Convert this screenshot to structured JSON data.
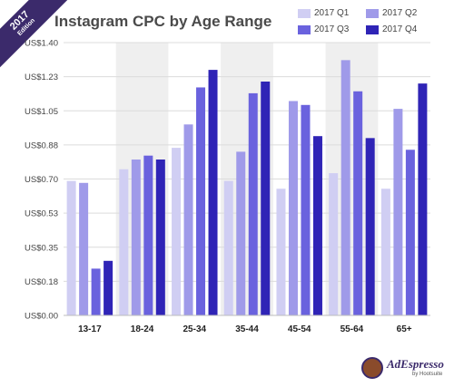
{
  "badge": {
    "year": "2017",
    "subtitle": "Edition"
  },
  "logo": {
    "name": "AdEspresso",
    "by": "by Hootsuite"
  },
  "chart_data": {
    "type": "bar",
    "title": "Instagram CPC by Age Range",
    "categories": [
      "13-17",
      "18-24",
      "25-34",
      "35-44",
      "45-54",
      "55-64",
      "65+"
    ],
    "series": [
      {
        "name": "2017 Q1",
        "color": "#d0cef3",
        "values": [
          0.69,
          0.75,
          0.86,
          0.69,
          0.65,
          0.73,
          0.65
        ]
      },
      {
        "name": "2017 Q2",
        "color": "#9f9ae9",
        "values": [
          0.68,
          0.8,
          0.98,
          0.84,
          1.1,
          1.31,
          1.06
        ]
      },
      {
        "name": "2017 Q3",
        "color": "#6a62de",
        "values": [
          0.24,
          0.82,
          1.17,
          1.14,
          1.08,
          1.15,
          0.85
        ]
      },
      {
        "name": "2017 Q4",
        "color": "#2f24b6",
        "values": [
          0.28,
          0.8,
          1.26,
          1.2,
          0.92,
          0.91,
          1.19
        ]
      }
    ],
    "y_ticks": [
      "US$0.00",
      "US$0.18",
      "US$0.35",
      "US$0.53",
      "US$0.70",
      "US$0.88",
      "US$1.05",
      "US$1.23",
      "US$1.40"
    ],
    "ylim": [
      0,
      1.4
    ],
    "grid": true,
    "shaded_categories": [
      1,
      3,
      5
    ],
    "legend_position": "top-right"
  }
}
